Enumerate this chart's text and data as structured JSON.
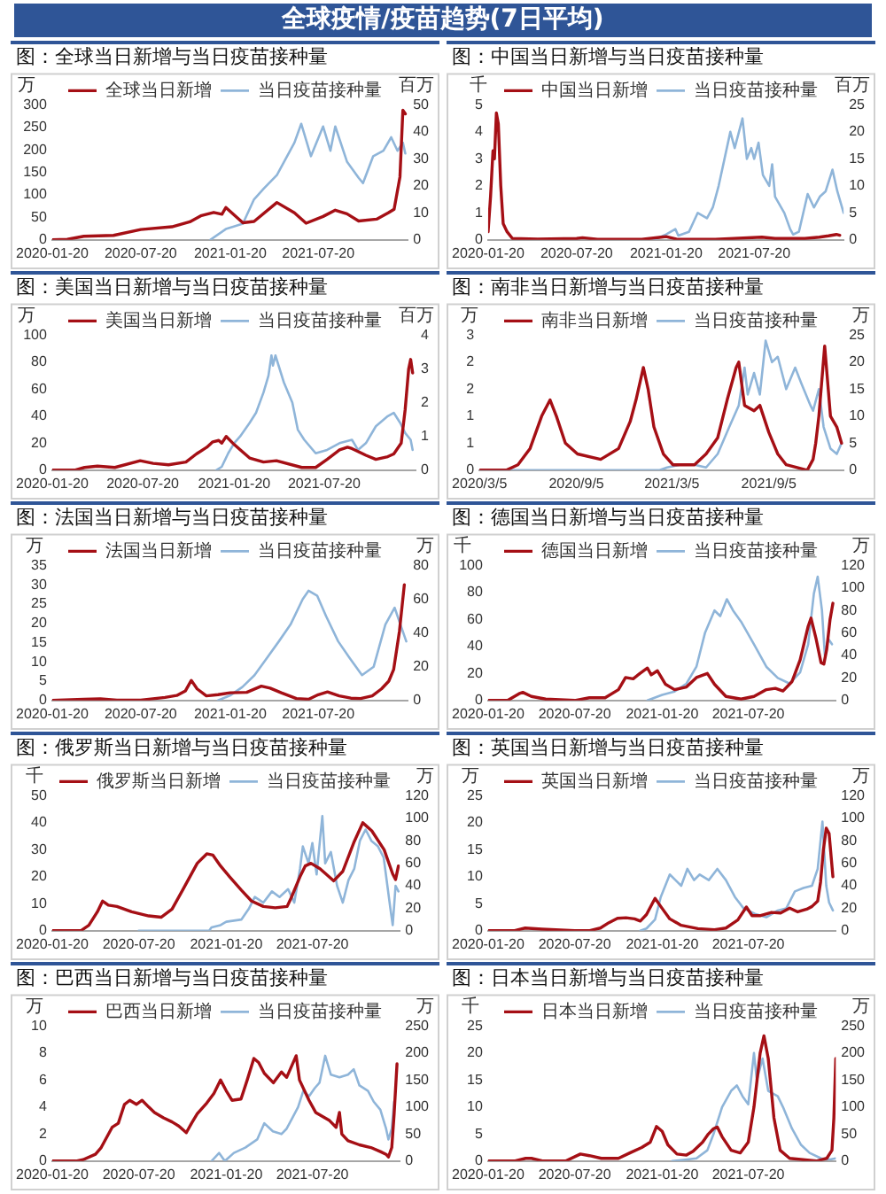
{
  "chart_data": [
    {
      "type": "other",
      "title": "全球疫情/疫苗趋势(7日平均)"
    },
    {
      "type": "line",
      "title": "图：全球当日新增与当日疫苗接种量",
      "ylabel": "万",
      "y2label": "百万",
      "xlim": [
        "2020-01-20",
        "2022-01-20"
      ],
      "xticks": [
        "2020-01-20",
        "2020-07-20",
        "2021-01-20",
        "2021-07-20"
      ],
      "ylim": [
        0,
        300
      ],
      "yticks": [
        0,
        50,
        100,
        150,
        200,
        250,
        300
      ],
      "y2lim": [
        0,
        50
      ],
      "y2ticks": [
        0,
        10,
        20,
        30,
        40,
        50
      ],
      "legend": "top",
      "series": [
        {
          "name": "全球当日新增",
          "color": "#a50f15",
          "x": [
            "2020-01-20",
            "2020-02-20",
            "2020-03-25",
            "2020-05-25",
            "2020-07-20",
            "2020-09-22",
            "2020-10-29",
            "2020-11-22",
            "2020-12-17",
            "2021-01-03",
            "2021-01-11",
            "2021-02-15",
            "2021-03-10",
            "2021-04-26",
            "2021-06-01",
            "2021-06-25",
            "2021-07-30",
            "2021-08-24",
            "2021-09-17",
            "2021-10-11",
            "2021-11-17",
            "2021-12-11",
            "2021-12-23",
            "2022-01-04",
            "2022-01-10",
            "2022-01-15"
          ],
          "values": [
            0,
            1,
            8,
            10,
            23,
            29,
            40,
            54,
            61,
            57,
            72,
            38,
            41,
            83,
            60,
            37,
            52,
            66,
            58,
            42,
            46,
            60,
            68,
            140,
            288,
            280
          ]
        },
        {
          "name": "当日疫苗接种量",
          "color": "#8fb5d9",
          "axis": "y2",
          "x": [
            "2020-12-10",
            "2021-01-11",
            "2021-02-15",
            "2021-03-10",
            "2021-03-30",
            "2021-04-26",
            "2021-06-01",
            "2021-06-15",
            "2021-07-05",
            "2021-07-30",
            "2021-08-14",
            "2021-08-24",
            "2021-09-17",
            "2021-10-11",
            "2021-10-20",
            "2021-11-10",
            "2021-12-01",
            "2021-12-17",
            "2021-12-30",
            "2022-01-10",
            "2022-01-15"
          ],
          "values": [
            0,
            4,
            6,
            15,
            19,
            24,
            36,
            43,
            31,
            42,
            33,
            42,
            29,
            23,
            21,
            31,
            33,
            38,
            33,
            36,
            32
          ]
        }
      ]
    },
    {
      "type": "line",
      "title": "图：中国当日新增与当日疫苗接种量",
      "ylabel": "千",
      "y2label": "百万",
      "xlim": [
        "2020-01-20",
        "2022-01-20"
      ],
      "xticks": [
        "2020-01-20",
        "2020-07-20",
        "2021-01-20",
        "2021-07-20"
      ],
      "ylim": [
        0,
        5
      ],
      "yticks": [
        0,
        1,
        2,
        3,
        4,
        5
      ],
      "y2lim": [
        0,
        25
      ],
      "y2ticks": [
        0,
        5,
        10,
        15,
        20,
        25
      ],
      "legend": "top",
      "series": [
        {
          "name": "中国当日新增",
          "color": "#a50f15",
          "x": [
            "2020-01-20",
            "2020-01-25",
            "2020-01-30",
            "2020-02-02",
            "2020-02-06",
            "2020-02-10",
            "2020-02-15",
            "2020-02-20",
            "2020-02-28",
            "2020-03-10",
            "2020-05-01",
            "2020-07-20",
            "2020-08-01",
            "2020-09-01",
            "2020-12-01",
            "2021-01-10",
            "2021-01-20",
            "2021-02-10",
            "2021-05-01",
            "2021-08-05",
            "2021-09-01",
            "2021-11-01",
            "2021-12-01",
            "2021-12-20",
            "2022-01-05",
            "2022-01-12"
          ],
          "values": [
            0.3,
            1.6,
            3.3,
            3.0,
            4.7,
            4.3,
            2.0,
            0.6,
            0.3,
            0.05,
            0.03,
            0.05,
            0.08,
            0.02,
            0.02,
            0.1,
            0.12,
            0.03,
            0.02,
            0.1,
            0.05,
            0.05,
            0.1,
            0.15,
            0.2,
            0.17
          ]
        },
        {
          "name": "当日疫苗接种量",
          "color": "#8fb5d9",
          "axis": "y2",
          "x": [
            "2020-12-26",
            "2021-01-20",
            "2021-02-08",
            "2021-02-14",
            "2021-03-08",
            "2021-03-26",
            "2021-04-14",
            "2021-04-26",
            "2021-05-08",
            "2021-05-20",
            "2021-06-01",
            "2021-06-10",
            "2021-06-26",
            "2021-07-05",
            "2021-07-14",
            "2021-07-20",
            "2021-07-29",
            "2021-08-07",
            "2021-08-20",
            "2021-08-26",
            "2021-09-01",
            "2021-09-20",
            "2021-10-02",
            "2021-10-08",
            "2021-10-20",
            "2021-11-07",
            "2021-11-20",
            "2021-12-02",
            "2021-12-14",
            "2021-12-28",
            "2022-01-07",
            "2022-01-20"
          ],
          "values": [
            0,
            1.0,
            2.0,
            0.8,
            1.5,
            5,
            4,
            6,
            10,
            15,
            20,
            17,
            22.5,
            15,
            17,
            15,
            18,
            12,
            10,
            14,
            8,
            5,
            2,
            1,
            1.5,
            8.5,
            6,
            8,
            9,
            13,
            9,
            5
          ]
        }
      ]
    },
    {
      "type": "line",
      "title": "图：美国当日新增与当日疫苗接种量",
      "ylabel": "万",
      "y2label": "百万",
      "xlim": [
        "2020-01-20",
        "2022-01-20"
      ],
      "xticks": [
        "2020-01-20",
        "2020-07-20",
        "2021-01-20",
        "2021-07-20"
      ],
      "ylim": [
        0,
        100
      ],
      "yticks": [
        0,
        20,
        40,
        60,
        80,
        100
      ],
      "y2lim": [
        0,
        4
      ],
      "y2ticks": [
        0,
        1,
        2,
        3,
        4
      ],
      "legend": "top",
      "series": [
        {
          "name": "美国当日新增",
          "color": "#a50f15",
          "x": [
            "2020-01-20",
            "2020-03-05",
            "2020-03-25",
            "2020-04-20",
            "2020-05-25",
            "2020-07-15",
            "2020-08-10",
            "2020-09-10",
            "2020-10-15",
            "2020-11-05",
            "2020-11-26",
            "2020-12-08",
            "2020-12-20",
            "2020-12-26",
            "2021-01-04",
            "2021-01-20",
            "2021-02-20",
            "2021-03-20",
            "2021-04-15",
            "2021-06-05",
            "2021-07-03",
            "2021-07-26",
            "2021-08-20",
            "2021-09-05",
            "2021-09-14",
            "2021-10-12",
            "2021-11-01",
            "2021-11-25",
            "2021-12-07",
            "2021-12-22",
            "2021-12-30",
            "2022-01-06",
            "2022-01-10",
            "2022-01-14"
          ],
          "values": [
            0,
            0,
            2,
            3,
            2,
            7,
            5,
            4,
            6,
            12,
            17,
            21,
            22,
            20,
            25,
            19,
            9,
            6,
            7,
            2,
            2,
            8,
            15,
            17,
            16,
            11,
            8,
            10,
            12,
            20,
            45,
            75,
            82,
            72
          ]
        },
        {
          "name": "当日疫苗接种量",
          "color": "#8fb5d9",
          "axis": "y2",
          "x": [
            "2020-12-15",
            "2020-12-26",
            "2021-01-08",
            "2021-01-20",
            "2021-02-01",
            "2021-02-20",
            "2021-03-05",
            "2021-03-20",
            "2021-03-30",
            "2021-04-05",
            "2021-04-08",
            "2021-04-13",
            "2021-04-30",
            "2021-05-17",
            "2021-05-28",
            "2021-06-10",
            "2021-07-03",
            "2021-07-26",
            "2021-08-20",
            "2021-09-14",
            "2021-09-26",
            "2021-10-12",
            "2021-11-01",
            "2021-11-25",
            "2021-12-07",
            "2021-12-20",
            "2021-12-30",
            "2022-01-10",
            "2022-01-14"
          ],
          "values": [
            0,
            0.1,
            0.5,
            0.8,
            1.0,
            1.4,
            1.7,
            2.3,
            2.8,
            3.4,
            3.1,
            3.4,
            2.6,
            2.0,
            1.2,
            0.9,
            0.5,
            0.6,
            0.8,
            0.9,
            0.6,
            0.8,
            1.3,
            1.6,
            1.7,
            1.4,
            1.1,
            0.9,
            0.6
          ]
        }
      ]
    },
    {
      "type": "line",
      "title": "图：南非当日新增与当日疫苗接种量",
      "ylabel": "万",
      "y2label": "万",
      "xlim": [
        "2020-03-05",
        "2022-01-25"
      ],
      "xticks": [
        {
          "value": "2020-03-05",
          "label": "2020/3/5"
        },
        {
          "value": "2020-09-05",
          "label": "2020/9/5"
        },
        {
          "value": "2021-03-05",
          "label": "2021/3/5"
        },
        {
          "value": "2021-09-05",
          "label": "2021/9/5"
        }
      ],
      "ylim": [
        0,
        2.5
      ],
      "yticks": [
        0,
        {
          "value": 0.5,
          "label": "1"
        },
        1,
        {
          "value": 1.5,
          "label": "2"
        },
        2,
        {
          "value": 2.5,
          "label": "3"
        }
      ],
      "y2lim": [
        0,
        25
      ],
      "y2ticks": [
        0,
        5,
        10,
        15,
        20,
        25
      ],
      "legend": "top",
      "series": [
        {
          "name": "南非当日新增",
          "color": "#a50f15",
          "x": [
            "2020-03-05",
            "2020-04-25",
            "2020-05-17",
            "2020-06-09",
            "2020-07-01",
            "2020-07-17",
            "2020-07-29",
            "2020-08-15",
            "2020-09-07",
            "2020-10-21",
            "2020-11-24",
            "2020-12-16",
            "2020-12-27",
            "2021-01-10",
            "2021-01-19",
            "2021-01-30",
            "2021-02-17",
            "2021-03-07",
            "2021-04-17",
            "2021-05-09",
            "2021-05-31",
            "2021-06-18",
            "2021-07-05",
            "2021-07-10",
            "2021-07-21",
            "2021-08-08",
            "2021-08-19",
            "2021-09-05",
            "2021-09-22",
            "2021-10-08",
            "2021-11-17",
            "2021-11-28",
            "2021-12-03",
            "2021-12-09",
            "2021-12-20",
            "2021-12-31",
            "2022-01-12",
            "2022-01-21"
          ],
          "values": [
            0,
            0,
            0.1,
            0.4,
            1.0,
            1.3,
            1.0,
            0.5,
            0.3,
            0.2,
            0.4,
            0.9,
            1.3,
            1.9,
            1.5,
            0.8,
            0.3,
            0.1,
            0.1,
            0.3,
            0.6,
            1.3,
            1.9,
            2.0,
            1.2,
            1.1,
            1.2,
            0.7,
            0.3,
            0.1,
            0,
            0.2,
            0.5,
            1.0,
            2.3,
            1.0,
            0.8,
            0.5
          ]
        },
        {
          "name": "当日疫苗接种量",
          "color": "#8fb5d9",
          "axis": "y2",
          "x": [
            "2020-03-05",
            "2021-02-10",
            "2021-02-24",
            "2021-03-20",
            "2021-04-17",
            "2021-05-09",
            "2021-05-31",
            "2021-06-22",
            "2021-07-10",
            "2021-07-21",
            "2021-07-27",
            "2021-08-08",
            "2021-08-19",
            "2021-08-30",
            "2021-09-11",
            "2021-09-22",
            "2021-10-08",
            "2021-10-25",
            "2021-11-06",
            "2021-11-23",
            "2021-11-28",
            "2021-12-09",
            "2021-12-18",
            "2021-12-31",
            "2022-01-12",
            "2022-01-21"
          ],
          "values": [
            0,
            0,
            0.5,
            1.0,
            1.0,
            0.5,
            3,
            8,
            12,
            19,
            14,
            18,
            14,
            24,
            20,
            21,
            15,
            19,
            16,
            12,
            11,
            15,
            8,
            4,
            3,
            5
          ]
        }
      ]
    },
    {
      "type": "line",
      "title": "图：法国当日新增与当日疫苗接种量",
      "ylabel": "万",
      "y2label": "万",
      "xlim": [
        "2020-01-20",
        "2022-01-20"
      ],
      "xticks": [
        "2020-01-20",
        "2020-07-20",
        "2021-01-20",
        "2021-07-20"
      ],
      "ylim": [
        0,
        35
      ],
      "yticks": [
        0,
        5,
        10,
        15,
        20,
        25,
        30,
        35
      ],
      "y2lim": [
        0,
        80
      ],
      "y2ticks": [
        0,
        20,
        40,
        60,
        80
      ],
      "legend": "top",
      "series": [
        {
          "name": "法国当日新增",
          "color": "#a50f15",
          "x": [
            "2020-01-20",
            "2020-03-25",
            "2020-04-28",
            "2020-06-01",
            "2020-07-20",
            "2020-09-08",
            "2020-10-02",
            "2020-10-20",
            "2020-11-01",
            "2020-11-13",
            "2020-12-02",
            "2020-12-26",
            "2021-01-20",
            "2021-02-23",
            "2021-03-25",
            "2021-04-12",
            "2021-05-05",
            "2021-06-05",
            "2021-06-30",
            "2021-07-20",
            "2021-08-08",
            "2021-09-01",
            "2021-09-25",
            "2021-10-15",
            "2021-11-08",
            "2021-11-27",
            "2021-12-12",
            "2021-12-22",
            "2022-01-03",
            "2022-01-13"
          ],
          "values": [
            0,
            0.3,
            0.4,
            0.1,
            0.1,
            0.8,
            1.3,
            2.5,
            5.2,
            3,
            1.2,
            1.5,
            2,
            2.1,
            3.7,
            3.2,
            2,
            0.5,
            0.3,
            1.5,
            2.2,
            1.2,
            0.6,
            0.5,
            1.2,
            3,
            5,
            8,
            18,
            30
          ]
        },
        {
          "name": "当日疫苗接种量",
          "color": "#8fb5d9",
          "axis": "y2",
          "x": [
            "2020-12-26",
            "2021-01-20",
            "2021-02-14",
            "2021-03-11",
            "2021-04-05",
            "2021-04-30",
            "2021-05-24",
            "2021-06-18",
            "2021-06-30",
            "2021-07-18",
            "2021-08-05",
            "2021-08-30",
            "2021-09-23",
            "2021-10-18",
            "2021-11-11",
            "2021-12-05",
            "2021-12-24",
            "2022-01-05",
            "2022-01-17"
          ],
          "values": [
            0,
            3,
            8,
            15,
            25,
            35,
            45,
            60,
            65,
            62,
            50,
            35,
            25,
            15,
            20,
            45,
            55,
            45,
            35
          ]
        }
      ]
    },
    {
      "type": "line",
      "title": "图：德国当日新增与当日疫苗接种量",
      "ylabel": "千",
      "y2label": "万",
      "xlim": [
        "2020-01-20",
        "2022-01-20"
      ],
      "xticks": [
        "2020-01-20",
        "2020-07-20",
        "2021-01-20",
        "2021-07-20"
      ],
      "ylim": [
        0,
        100
      ],
      "yticks": [
        0,
        20,
        40,
        60,
        80,
        100
      ],
      "y2lim": [
        0,
        120
      ],
      "y2ticks": [
        0,
        20,
        40,
        60,
        80,
        100,
        120
      ],
      "legend": "top",
      "series": [
        {
          "name": "德国当日新增",
          "color": "#a50f15",
          "x": [
            "2020-01-20",
            "2020-03-01",
            "2020-03-25",
            "2020-04-02",
            "2020-04-20",
            "2020-05-20",
            "2020-07-20",
            "2020-08-20",
            "2020-09-22",
            "2020-10-20",
            "2020-11-04",
            "2020-11-20",
            "2020-12-04",
            "2020-12-20",
            "2020-12-28",
            "2021-01-10",
            "2021-01-27",
            "2021-02-15",
            "2021-03-12",
            "2021-04-02",
            "2021-04-25",
            "2021-05-10",
            "2021-06-03",
            "2021-07-05",
            "2021-08-01",
            "2021-08-27",
            "2021-09-15",
            "2021-10-01",
            "2021-10-20",
            "2021-11-06",
            "2021-11-23",
            "2021-11-29",
            "2021-12-10",
            "2021-12-20",
            "2021-12-26",
            "2022-01-01",
            "2022-01-08",
            "2022-01-14"
          ],
          "values": [
            0,
            0,
            5,
            6,
            3,
            1,
            0,
            2,
            2,
            8,
            17,
            16,
            20,
            24,
            19,
            22,
            12,
            8,
            10,
            17,
            20,
            12,
            3,
            1,
            3,
            8,
            9,
            7,
            14,
            30,
            55,
            61,
            45,
            28,
            27,
            38,
            60,
            72
          ]
        },
        {
          "name": "当日疫苗接种量",
          "color": "#8fb5d9",
          "axis": "y2",
          "x": [
            "2020-12-20",
            "2021-01-20",
            "2021-02-15",
            "2021-03-12",
            "2021-04-02",
            "2021-04-20",
            "2021-05-10",
            "2021-05-22",
            "2021-06-05",
            "2021-06-18",
            "2021-07-05",
            "2021-08-01",
            "2021-08-27",
            "2021-09-20",
            "2021-10-15",
            "2021-11-06",
            "2021-11-23",
            "2021-12-05",
            "2021-12-13",
            "2021-12-22",
            "2021-12-28",
            "2022-01-04",
            "2022-01-12"
          ],
          "values": [
            0,
            5,
            8,
            15,
            30,
            60,
            80,
            75,
            90,
            80,
            70,
            50,
            30,
            20,
            15,
            25,
            50,
            95,
            110,
            80,
            40,
            55,
            50
          ]
        }
      ]
    },
    {
      "type": "line",
      "title": "图：俄罗斯当日新增与当日疫苗接种量",
      "ylabel": "千",
      "y2label": "万",
      "xlim": [
        "2020-01-20",
        "2022-01-20"
      ],
      "xticks": [
        "2020-01-20",
        "2020-07-20",
        "2021-01-20",
        "2021-07-20"
      ],
      "ylim": [
        0,
        50
      ],
      "yticks": [
        0,
        10,
        20,
        30,
        40,
        50
      ],
      "y2lim": [
        0,
        120
      ],
      "y2ticks": [
        0,
        20,
        40,
        60,
        80,
        100,
        120
      ],
      "legend": "top",
      "series": [
        {
          "name": "俄罗斯当日新增",
          "color": "#a50f15",
          "x": [
            "2020-01-20",
            "2020-03-20",
            "2020-04-06",
            "2020-04-24",
            "2020-05-05",
            "2020-05-17",
            "2020-06-04",
            "2020-07-05",
            "2020-08-10",
            "2020-09-05",
            "2020-09-28",
            "2020-10-20",
            "2020-11-20",
            "2020-12-10",
            "2020-12-23",
            "2021-01-08",
            "2021-01-27",
            "2021-02-21",
            "2021-03-14",
            "2021-04-08",
            "2021-05-03",
            "2021-05-28",
            "2021-06-05",
            "2021-06-24",
            "2021-07-05",
            "2021-07-17",
            "2021-08-05",
            "2021-09-03",
            "2021-09-22",
            "2021-10-16",
            "2021-11-03",
            "2021-11-22",
            "2021-12-18",
            "2022-01-05",
            "2022-01-11",
            "2022-01-17"
          ],
          "values": [
            0,
            0,
            2,
            7,
            11,
            9.5,
            9,
            7,
            5.5,
            5,
            8,
            15,
            25,
            28.5,
            28,
            24,
            20,
            15,
            11,
            9,
            8.5,
            9,
            12,
            20,
            24,
            25,
            23,
            18.5,
            22,
            33,
            40,
            37,
            30,
            21,
            19,
            24
          ]
        },
        {
          "name": "当日疫苗接种量",
          "color": "#8fb5d9",
          "axis": "y2",
          "x": [
            "2020-07-20",
            "2020-12-15",
            "2020-12-20",
            "2021-01-08",
            "2021-01-20",
            "2021-02-21",
            "2021-03-09",
            "2021-03-21",
            "2021-04-08",
            "2021-04-26",
            "2021-05-12",
            "2021-05-30",
            "2021-06-12",
            "2021-06-24",
            "2021-06-30",
            "2021-07-12",
            "2021-07-20",
            "2021-07-29",
            "2021-08-10",
            "2021-08-16",
            "2021-08-28",
            "2021-09-10",
            "2021-09-22",
            "2021-10-04",
            "2021-10-16",
            "2021-10-28",
            "2021-11-09",
            "2021-11-21",
            "2021-12-05",
            "2021-12-17",
            "2021-12-31",
            "2022-01-05",
            "2022-01-11",
            "2022-01-17"
          ],
          "values": [
            0,
            0,
            3,
            5,
            8,
            10,
            20,
            30,
            25,
            35,
            30,
            37,
            25,
            55,
            75,
            60,
            78,
            50,
            102,
            60,
            70,
            40,
            25,
            45,
            55,
            80,
            90,
            80,
            75,
            65,
            20,
            5,
            40,
            35
          ]
        }
      ]
    },
    {
      "type": "line",
      "title": "图：英国当日新增与当日疫苗接种量",
      "ylabel": "万",
      "y2label": "万",
      "xlim": [
        "2020-01-20",
        "2022-01-20"
      ],
      "xticks": [
        "2020-01-20",
        "2020-07-20",
        "2021-01-20",
        "2021-07-20"
      ],
      "ylim": [
        0,
        25
      ],
      "yticks": [
        0,
        5,
        10,
        15,
        20,
        25
      ],
      "y2lim": [
        0,
        120
      ],
      "y2ticks": [
        0,
        20,
        40,
        60,
        80,
        100,
        120
      ],
      "legend": "top",
      "series": [
        {
          "name": "英国当日新增",
          "color": "#a50f15",
          "x": [
            "2020-01-20",
            "2020-03-14",
            "2020-04-07",
            "2020-05-12",
            "2020-07-20",
            "2020-08-19",
            "2020-09-12",
            "2020-09-30",
            "2020-10-18",
            "2020-11-05",
            "2020-11-23",
            "2020-12-05",
            "2020-12-18",
            "2020-12-30",
            "2021-01-05",
            "2021-01-17",
            "2021-02-05",
            "2021-03-01",
            "2021-04-05",
            "2021-05-10",
            "2021-06-03",
            "2021-06-28",
            "2021-07-16",
            "2021-07-28",
            "2021-08-15",
            "2021-09-07",
            "2021-09-26",
            "2021-10-15",
            "2021-11-01",
            "2021-11-20",
            "2021-12-01",
            "2021-12-13",
            "2021-12-19",
            "2021-12-25",
            "2021-12-31",
            "2022-01-06",
            "2022-01-14"
          ],
          "values": [
            0,
            0,
            0.5,
            0.3,
            0,
            0,
            0.5,
            1.5,
            2.3,
            2.4,
            2.2,
            1.8,
            3,
            5,
            6,
            4.5,
            2.2,
            1.0,
            0.4,
            0.2,
            0.5,
            2,
            4.4,
            2.8,
            2.8,
            3.4,
            3.3,
            4.2,
            3.5,
            4,
            4.5,
            5.5,
            9,
            15,
            19,
            18,
            10
          ]
        },
        {
          "name": "当日疫苗接种量",
          "color": "#8fb5d9",
          "axis": "y2",
          "x": [
            "2020-12-05",
            "2020-12-18",
            "2021-01-05",
            "2021-01-17",
            "2021-02-05",
            "2021-02-17",
            "2021-03-01",
            "2021-03-14",
            "2021-03-28",
            "2021-04-09",
            "2021-04-28",
            "2021-05-16",
            "2021-06-03",
            "2021-06-22",
            "2021-07-10",
            "2021-08-03",
            "2021-08-27",
            "2021-09-20",
            "2021-10-08",
            "2021-10-26",
            "2021-11-13",
            "2021-12-01",
            "2021-12-13",
            "2021-12-23",
            "2021-12-31",
            "2022-01-06",
            "2022-01-14"
          ],
          "values": [
            0,
            2,
            10,
            30,
            50,
            45,
            40,
            55,
            45,
            50,
            45,
            55,
            45,
            30,
            20,
            15,
            12,
            18,
            20,
            35,
            38,
            40,
            55,
            97,
            40,
            25,
            18
          ]
        }
      ]
    },
    {
      "type": "line",
      "title": "图：巴西当日新增与当日疫苗接种量",
      "ylabel": "万",
      "y2label": "万",
      "xlim": [
        "2020-01-20",
        "2022-01-20"
      ],
      "xticks": [
        "2020-01-20",
        "2020-07-20",
        "2021-01-20",
        "2021-07-20"
      ],
      "ylim": [
        0,
        10
      ],
      "yticks": [
        0,
        2,
        4,
        6,
        8,
        10
      ],
      "y2lim": [
        0,
        250
      ],
      "y2ticks": [
        0,
        50,
        100,
        150,
        200,
        250
      ],
      "legend": "top",
      "series": [
        {
          "name": "巴西当日新增",
          "color": "#a50f15",
          "x": [
            "2020-01-20",
            "2020-03-10",
            "2020-03-25",
            "2020-04-20",
            "2020-05-02",
            "2020-05-25",
            "2020-06-07",
            "2020-06-20",
            "2020-07-01",
            "2020-07-15",
            "2020-07-27",
            "2020-08-10",
            "2020-08-22",
            "2020-09-10",
            "2020-09-28",
            "2020-10-12",
            "2020-10-28",
            "2020-11-08",
            "2020-11-20",
            "2020-12-10",
            "2020-12-25",
            "2021-01-08",
            "2021-01-20",
            "2021-02-01",
            "2021-02-20",
            "2021-03-05",
            "2021-03-19",
            "2021-03-29",
            "2021-04-10",
            "2021-04-29",
            "2021-05-16",
            "2021-05-27",
            "2021-06-16",
            "2021-06-23",
            "2021-07-13",
            "2021-07-27",
            "2021-08-25",
            "2021-09-08",
            "2021-09-15",
            "2021-09-20",
            "2021-10-03",
            "2021-10-27",
            "2021-11-20",
            "2021-12-10",
            "2021-12-22",
            "2021-12-27",
            "2022-01-03",
            "2022-01-08",
            "2022-01-14"
          ],
          "values": [
            0,
            0,
            0.1,
            0.5,
            1.0,
            2.5,
            2.8,
            4.2,
            4.5,
            4.2,
            4.5,
            4.0,
            3.6,
            3.2,
            2.9,
            2.6,
            2.1,
            2.8,
            3.5,
            4.3,
            5.0,
            6.0,
            5.2,
            4.5,
            4.6,
            6.0,
            7.6,
            7.3,
            6.5,
            5.8,
            6.6,
            6.2,
            7.8,
            6.0,
            4.5,
            3.6,
            3.0,
            2.5,
            3.6,
            2.0,
            1.5,
            1.2,
            1.0,
            0.7,
            0.5,
            0.3,
            1.0,
            3.5,
            7.2
          ]
        },
        {
          "name": "当日疫苗接种量",
          "color": "#8fb5d9",
          "axis": "y2",
          "x": [
            "2020-12-20",
            "2021-01-05",
            "2021-01-17",
            "2021-02-05",
            "2021-03-01",
            "2021-03-26",
            "2021-04-10",
            "2021-04-28",
            "2021-05-16",
            "2021-05-27",
            "2021-06-08",
            "2021-06-20",
            "2021-07-01",
            "2021-07-13",
            "2021-07-25",
            "2021-08-04",
            "2021-08-16",
            "2021-08-28",
            "2021-09-15",
            "2021-10-03",
            "2021-10-15",
            "2021-10-27",
            "2021-11-14",
            "2021-11-26",
            "2021-12-10",
            "2021-12-22",
            "2021-12-27",
            "2022-01-03",
            "2022-01-08"
          ],
          "values": [
            0,
            15,
            0,
            15,
            25,
            40,
            70,
            55,
            50,
            60,
            80,
            100,
            130,
            120,
            135,
            145,
            195,
            160,
            155,
            160,
            170,
            140,
            130,
            110,
            95,
            60,
            40,
            60,
            110
          ]
        }
      ]
    },
    {
      "type": "line",
      "title": "图：日本当日新增与当日疫苗接种量",
      "ylabel": "千",
      "y2label": "万",
      "xlim": [
        "2020-01-20",
        "2022-01-20"
      ],
      "xticks": [
        "2020-01-20",
        "2020-07-20",
        "2021-01-20",
        "2021-07-20"
      ],
      "ylim": [
        0,
        25
      ],
      "yticks": [
        0,
        5,
        10,
        15,
        20,
        25
      ],
      "y2lim": [
        0,
        250
      ],
      "y2ticks": [
        0,
        50,
        100,
        150,
        200,
        250
      ],
      "legend": "top",
      "series": [
        {
          "name": "日本当日新增",
          "color": "#a50f15",
          "x": [
            "2020-01-20",
            "2020-03-15",
            "2020-04-08",
            "2020-04-20",
            "2020-05-15",
            "2020-07-01",
            "2020-08-01",
            "2020-08-20",
            "2020-09-14",
            "2020-10-20",
            "2020-11-13",
            "2020-12-08",
            "2020-12-26",
            "2021-01-08",
            "2021-01-20",
            "2021-02-01",
            "2021-02-20",
            "2021-03-12",
            "2021-03-26",
            "2021-04-15",
            "2021-04-27",
            "2021-05-08",
            "2021-05-16",
            "2021-05-26",
            "2021-06-14",
            "2021-07-03",
            "2021-07-20",
            "2021-08-01",
            "2021-08-14",
            "2021-08-22",
            "2021-08-31",
            "2021-09-12",
            "2021-09-25",
            "2021-10-15",
            "2021-12-10",
            "2022-01-01",
            "2022-01-12",
            "2022-01-16",
            "2022-01-20"
          ],
          "values": [
            0,
            0,
            0.5,
            0.5,
            0,
            0,
            1.3,
            1.0,
            0.5,
            0.5,
            1.5,
            2.5,
            3.5,
            6.4,
            5.5,
            3,
            1.3,
            1.1,
            1.8,
            3.5,
            5.0,
            6.0,
            6.3,
            4.5,
            2.0,
            1.5,
            3.5,
            10,
            20,
            23.2,
            19,
            8,
            2,
            0.5,
            0,
            0.5,
            2,
            8,
            19
          ]
        },
        {
          "name": "当日疫苗接种量",
          "color": "#8fb5d9",
          "axis": "y2",
          "x": [
            "2021-02-10",
            "2021-02-20",
            "2021-03-14",
            "2021-04-02",
            "2021-04-25",
            "2021-05-08",
            "2021-05-26",
            "2021-06-14",
            "2021-06-26",
            "2021-07-08",
            "2021-07-20",
            "2021-08-01",
            "2021-08-07",
            "2021-08-19",
            "2021-08-31",
            "2021-09-20",
            "2021-10-01",
            "2021-10-20",
            "2021-11-08",
            "2021-11-26",
            "2021-12-20",
            "2022-01-08",
            "2022-01-20"
          ],
          "values": [
            0,
            1,
            3,
            5,
            20,
            50,
            100,
            130,
            140,
            120,
            105,
            200,
            150,
            190,
            130,
            120,
            100,
            60,
            30,
            15,
            5,
            3,
            5
          ]
        }
      ]
    }
  ]
}
